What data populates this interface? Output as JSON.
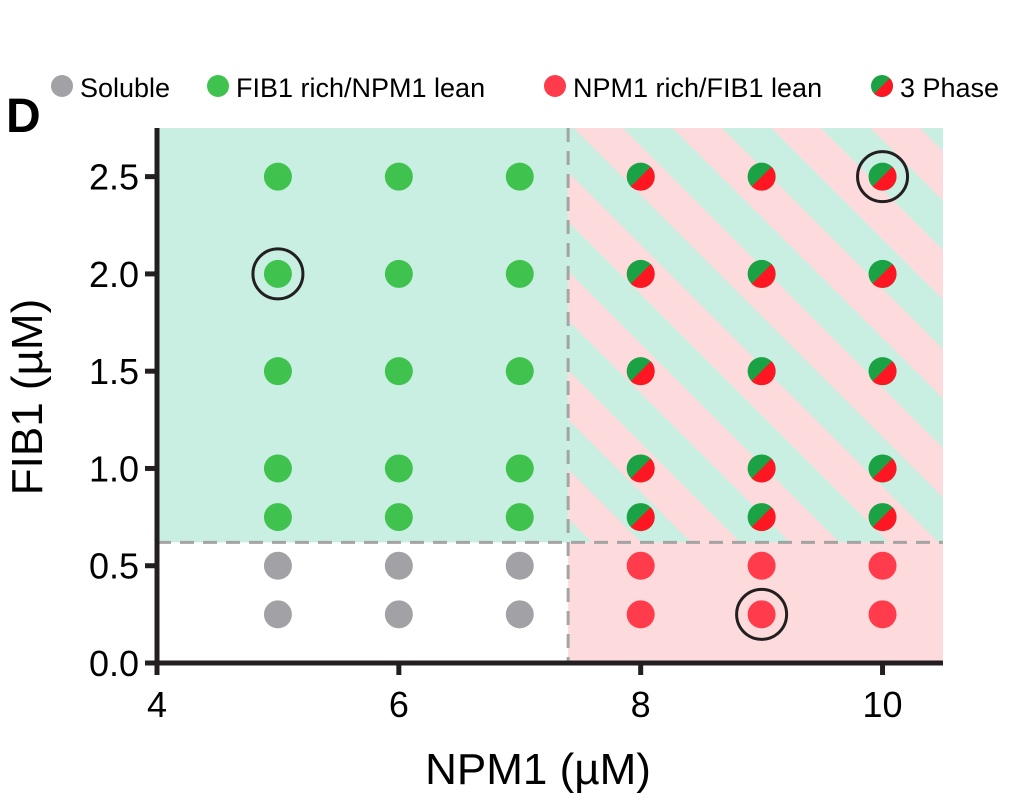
{
  "panel_label": "D",
  "colors": {
    "soluble": "#a2a2a6",
    "fib1_rich": "#40c34e",
    "npm1_rich": "#ff3b4c",
    "three_phase_green": "#1aa245",
    "three_phase_red": "#fe1722",
    "region_green": "#c8efe1",
    "region_red": "#fddadb",
    "guide_line": "#a4a4a4"
  },
  "chart_data": {
    "type": "scatter",
    "xlabel": "NPM1 (µM)",
    "ylabel": "FIB1 (µM)",
    "xlim": [
      4,
      10.5
    ],
    "ylim": [
      0,
      2.75
    ],
    "x_ticks": [
      4,
      6,
      8,
      10
    ],
    "x_tick_labels": [
      "4",
      "6",
      "8",
      "10"
    ],
    "y_ticks": [
      0,
      0.5,
      1.0,
      1.5,
      2.0,
      2.5
    ],
    "y_tick_labels": [
      "0.0",
      "0.5",
      "1.0",
      "1.5",
      "2.0",
      "2.5"
    ],
    "legend": {
      "placement": "top",
      "entries": [
        {
          "key": "soluble",
          "label": "Soluble"
        },
        {
          "key": "fib1_rich",
          "label": "FIB1 rich/NPM1 lean"
        },
        {
          "key": "npm1_rich",
          "label": "NPM1 rich/FIB1 lean"
        },
        {
          "key": "three_phase",
          "label": "3 Phase"
        }
      ]
    },
    "boundaries": {
      "x": 7.4,
      "y": 0.62
    },
    "regions": [
      {
        "key": "fib1_rich",
        "x": [
          4,
          7.4
        ],
        "y": [
          0.62,
          2.75
        ]
      },
      {
        "key": "three_phase",
        "x": [
          7.4,
          10.5
        ],
        "y": [
          0.62,
          2.75
        ]
      },
      {
        "key": "npm1_rich",
        "x": [
          7.4,
          10.5
        ],
        "y": [
          0,
          0.62
        ]
      }
    ],
    "series": [
      {
        "key": "soluble",
        "label": "Soluble",
        "points": [
          [
            5,
            0.25
          ],
          [
            6,
            0.25
          ],
          [
            7,
            0.25
          ],
          [
            5,
            0.5
          ],
          [
            6,
            0.5
          ],
          [
            7,
            0.5
          ]
        ]
      },
      {
        "key": "fib1_rich",
        "label": "FIB1 rich/NPM1 lean",
        "points": [
          [
            5,
            0.75
          ],
          [
            6,
            0.75
          ],
          [
            7,
            0.75
          ],
          [
            5,
            1.0
          ],
          [
            6,
            1.0
          ],
          [
            7,
            1.0
          ],
          [
            5,
            1.5
          ],
          [
            6,
            1.5
          ],
          [
            7,
            1.5
          ],
          [
            5,
            2.0
          ],
          [
            6,
            2.0
          ],
          [
            7,
            2.0
          ],
          [
            5,
            2.5
          ],
          [
            6,
            2.5
          ],
          [
            7,
            2.5
          ]
        ]
      },
      {
        "key": "npm1_rich",
        "label": "NPM1 rich/FIB1 lean",
        "points": [
          [
            8,
            0.25
          ],
          [
            9,
            0.25
          ],
          [
            10,
            0.25
          ],
          [
            8,
            0.5
          ],
          [
            9,
            0.5
          ],
          [
            10,
            0.5
          ]
        ]
      },
      {
        "key": "three_phase",
        "label": "3 Phase",
        "points": [
          [
            8,
            0.75
          ],
          [
            9,
            0.75
          ],
          [
            10,
            0.75
          ],
          [
            8,
            1.0
          ],
          [
            9,
            1.0
          ],
          [
            10,
            1.0
          ],
          [
            8,
            1.5
          ],
          [
            9,
            1.5
          ],
          [
            10,
            1.5
          ],
          [
            8,
            2.0
          ],
          [
            9,
            2.0
          ],
          [
            10,
            2.0
          ],
          [
            8,
            2.5
          ],
          [
            9,
            2.5
          ],
          [
            10,
            2.5
          ]
        ]
      }
    ],
    "highlighted": [
      [
        5,
        2.0
      ],
      [
        9,
        0.25
      ],
      [
        10,
        2.5
      ]
    ]
  }
}
